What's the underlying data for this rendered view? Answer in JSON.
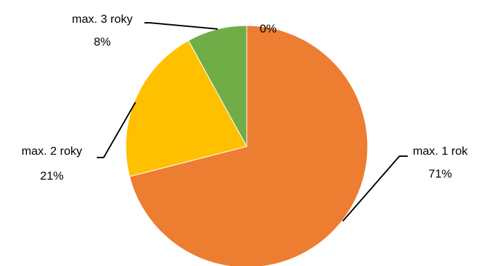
{
  "chart_data": {
    "type": "pie",
    "title": "",
    "slices": [
      {
        "label": "max. 1 rok",
        "value": 71,
        "percent_label": "71%",
        "color": "#ED7D31"
      },
      {
        "label": "max. 2 roky",
        "value": 21,
        "percent_label": "21%",
        "color": "#FFC000"
      },
      {
        "label": "max. 3 roky",
        "value": 8,
        "percent_label": "8%",
        "color": "#70AD47"
      },
      {
        "label": "",
        "value": 0,
        "percent_label": "0%",
        "color": "#4472C4"
      }
    ],
    "legend": "none",
    "leader_line_color": "#000000"
  }
}
